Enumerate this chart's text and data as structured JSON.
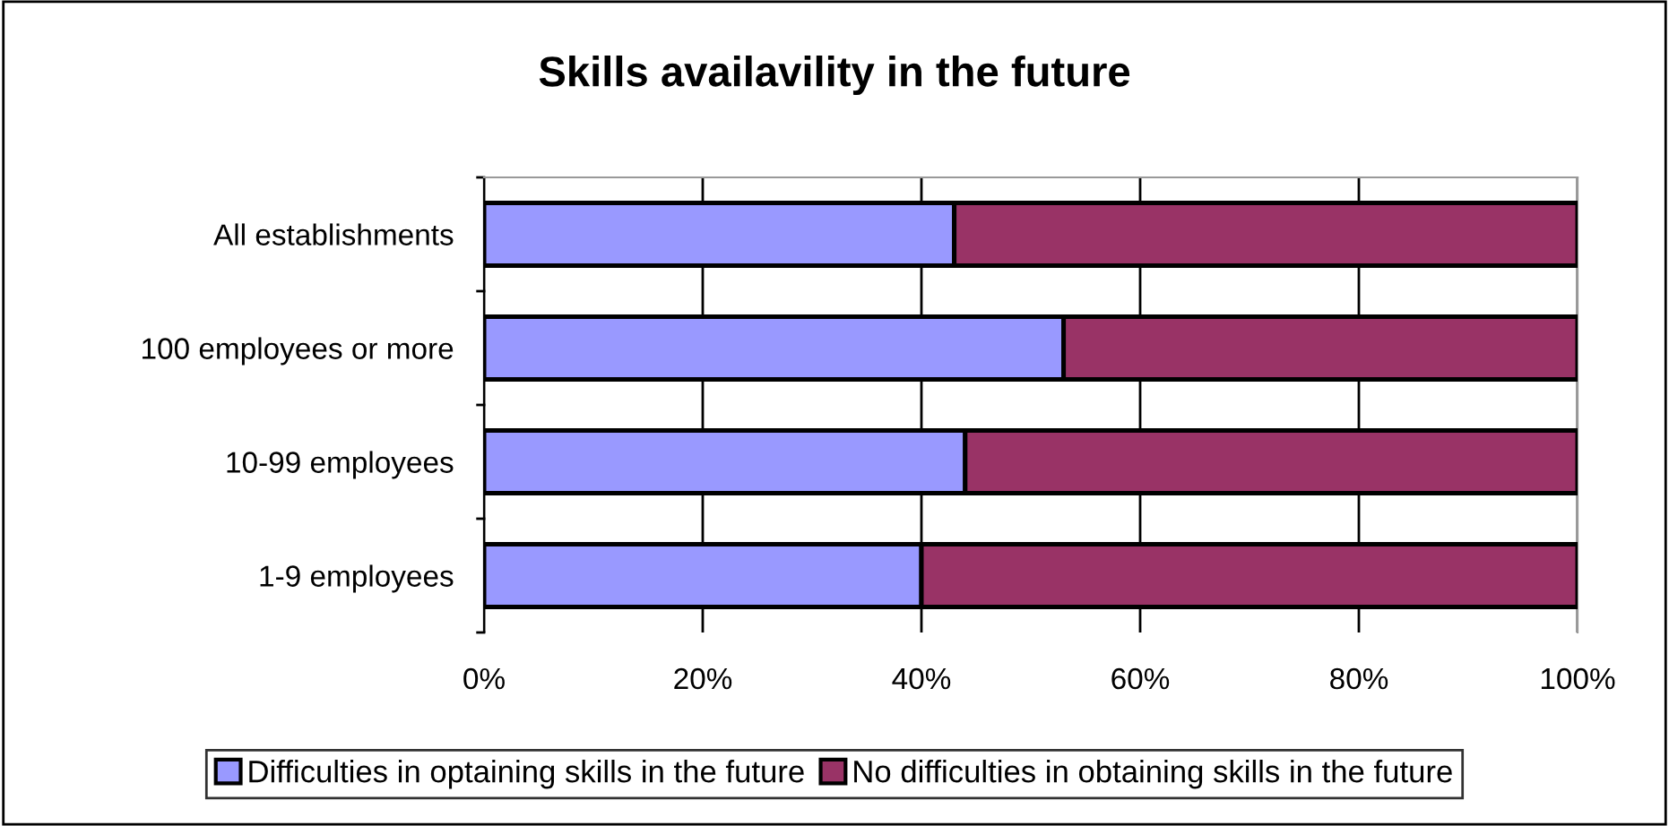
{
  "chart_data": {
    "type": "bar",
    "orientation": "horizontal",
    "stacked": true,
    "title": "Skills availavility in the future",
    "categories": [
      "All establishments",
      "100 employees or more",
      "10-99 employees",
      "1-9 employees"
    ],
    "series": [
      {
        "name": "Difficulties in optaining skills in the future",
        "color": "#9999ff",
        "values": [
          43,
          53,
          44,
          40
        ]
      },
      {
        "name": "No difficulties in obtaining skills in the future",
        "color": "#993366",
        "values": [
          57,
          47,
          56,
          60
        ]
      }
    ],
    "xlim": [
      0,
      100
    ],
    "xticks": [
      {
        "value": 0,
        "label": "0%"
      },
      {
        "value": 20,
        "label": "20%"
      },
      {
        "value": 40,
        "label": "40%"
      },
      {
        "value": 60,
        "label": "60%"
      },
      {
        "value": 80,
        "label": "80%"
      },
      {
        "value": 100,
        "label": "100%"
      }
    ],
    "grid": "x",
    "legend": "bottom"
  }
}
